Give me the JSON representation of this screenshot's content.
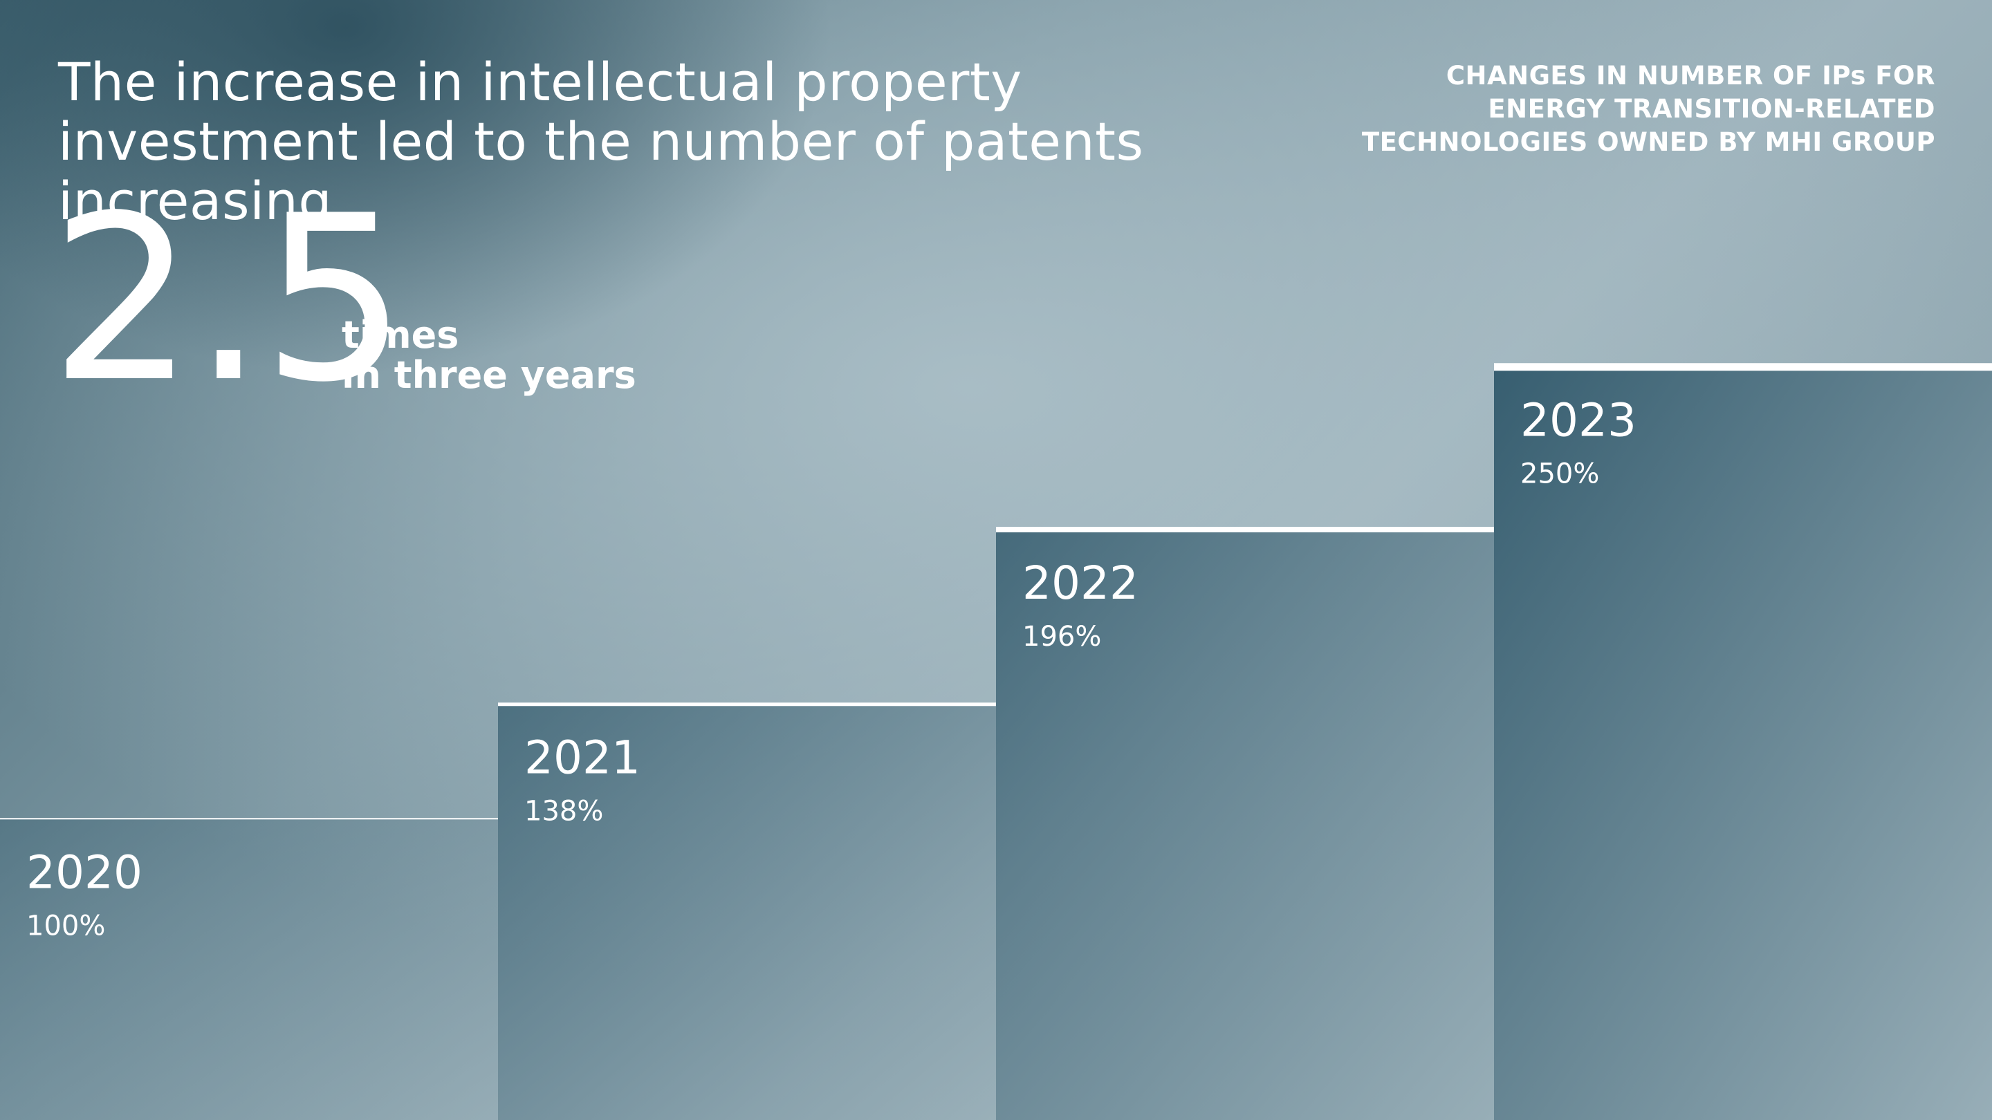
{
  "headline": "The increase in intellectual property investment led to the number of patents increasing",
  "subtitle_lines": [
    "CHANGES IN NUMBER OF IPs FOR",
    "ENERGY TRANSITION-RELATED",
    "TECHNOLOGIES OWNED BY MHI GROUP"
  ],
  "highlight": {
    "value": "2.5",
    "caption_line1": "times",
    "caption_line2": "in three years"
  },
  "colors": {
    "bar_dark": "#2c5568",
    "bar_light": "#9bb1ba",
    "bar_top_line": "#ffffff"
  },
  "chart_data": {
    "type": "bar",
    "categories": [
      "2020",
      "2021",
      "2022",
      "2023"
    ],
    "values": [
      100,
      138,
      196,
      250
    ],
    "value_labels": [
      "100%",
      "138%",
      "196%",
      "250%"
    ],
    "ylim": [
      0,
      280
    ],
    "grid": false,
    "legend": "none"
  }
}
